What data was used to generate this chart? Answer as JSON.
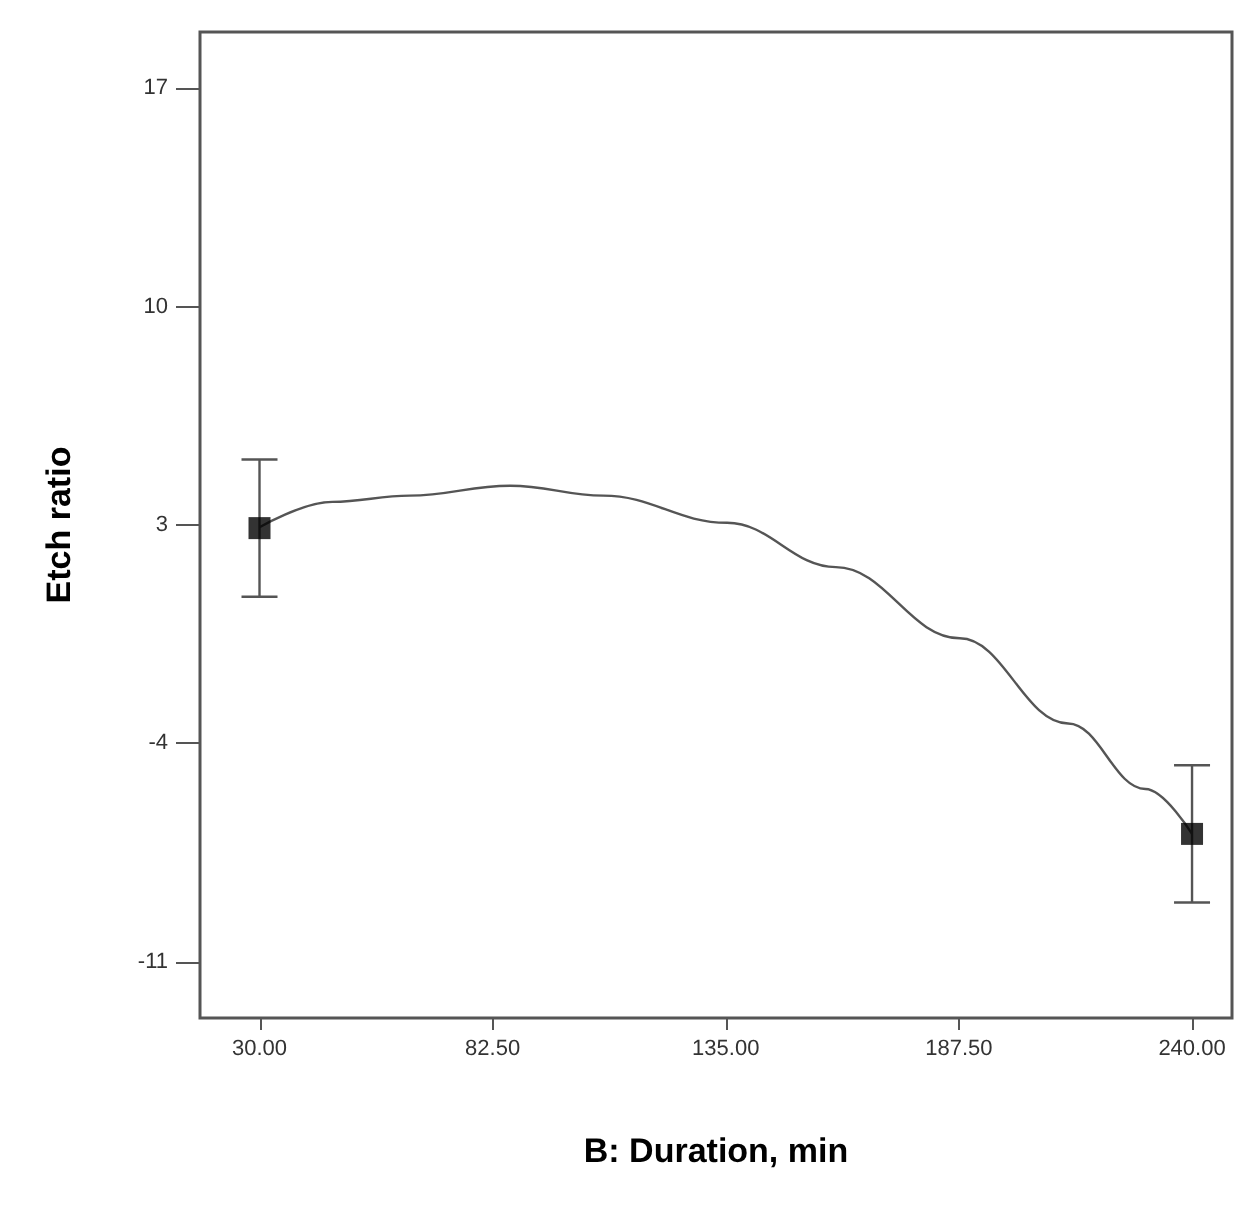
{
  "chart_data": {
    "type": "scatter",
    "xlabel": "B: Duration, min",
    "ylabel": "Etch ratio",
    "xlim": [
      16.6,
      249
    ],
    "ylim": [
      -12.8,
      18.8
    ],
    "xticks": [
      {
        "value": 30,
        "label": "30.00"
      },
      {
        "value": 82.5,
        "label": "82.50"
      },
      {
        "value": 135,
        "label": "135.00"
      },
      {
        "value": 187.5,
        "label": "187.50"
      },
      {
        "value": 240,
        "label": "240.00"
      }
    ],
    "yticks": [
      -11,
      -4,
      3,
      10,
      17
    ],
    "grid": false,
    "series": [
      {
        "type": "line",
        "color": "#555555",
        "marker": "none",
        "x": [
          30,
          46.4,
          63.8,
          86.5,
          107.4,
          135.3,
          159.8,
          187.7,
          212.1,
          229.5,
          240
        ],
        "values": [
          2.93,
          3.74,
          3.94,
          4.26,
          3.94,
          3.07,
          1.65,
          -0.63,
          -3.36,
          -5.46,
          -6.9
        ]
      },
      {
        "color": "#000000",
        "marker": "square",
        "x": [
          30,
          240
        ],
        "values": [
          2.9,
          -6.9
        ],
        "errors": [
          2.2,
          2.2
        ]
      }
    ]
  }
}
